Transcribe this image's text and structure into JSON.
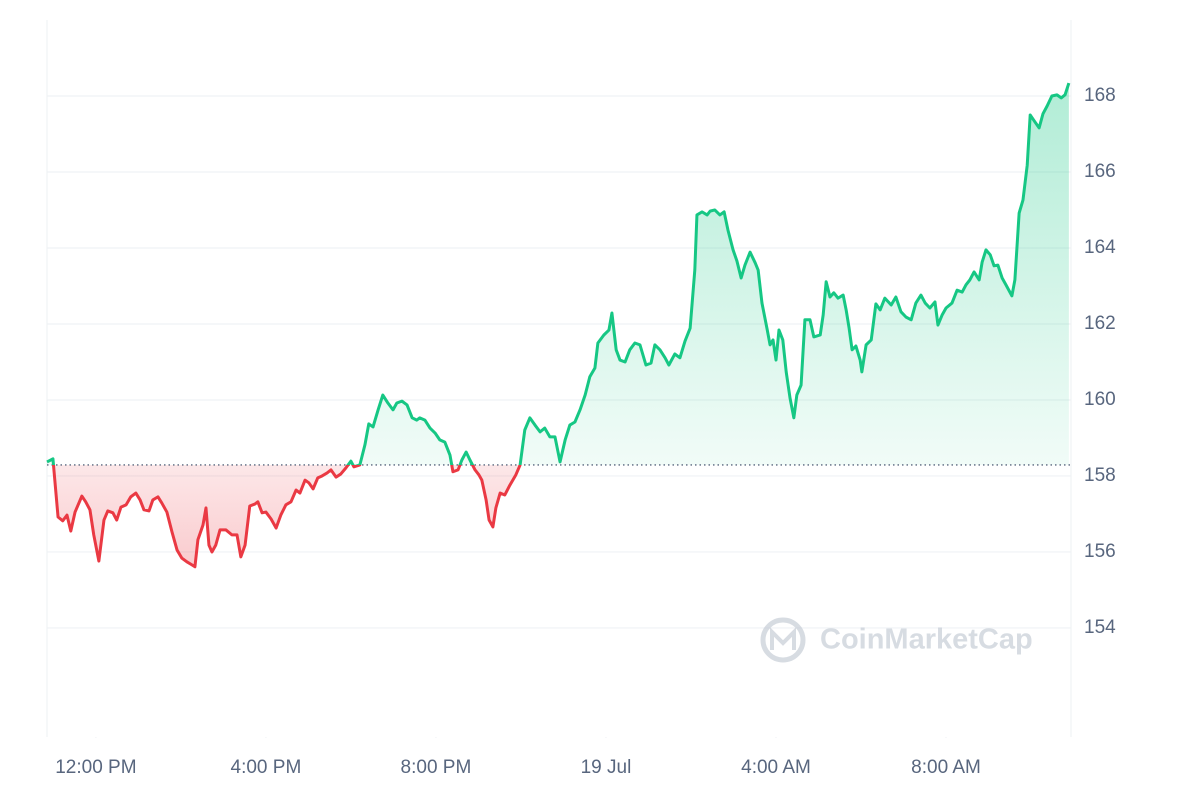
{
  "chart_data": {
    "type": "line",
    "watermark": "CoinMarketCap",
    "baseline": 158.29,
    "up_color": "#16c784",
    "down_color": "#ea3943",
    "grid": true,
    "xlim": [
      -1.15,
      22.94
    ],
    "ylim": [
      151.13,
      170
    ],
    "yticks": [
      154,
      156,
      158,
      160,
      162,
      164,
      166,
      168
    ],
    "xticks": [
      {
        "value": 0,
        "label": "12:00 PM"
      },
      {
        "value": 4,
        "label": "4:00 PM"
      },
      {
        "value": 8,
        "label": "8:00 PM"
      },
      {
        "value": 12,
        "label": "19 Jul"
      },
      {
        "value": 16,
        "label": "4:00 AM"
      },
      {
        "value": 20,
        "label": "8:00 AM"
      }
    ],
    "x": [
      -1.15,
      -1.01,
      -0.89,
      -0.78,
      -0.68,
      -0.59,
      -0.49,
      -0.33,
      -0.24,
      -0.14,
      -0.05,
      0.07,
      0.19,
      0.28,
      0.4,
      0.49,
      0.59,
      0.71,
      0.82,
      0.94,
      1.04,
      1.13,
      1.25,
      1.34,
      1.46,
      1.55,
      1.67,
      1.79,
      1.91,
      2.02,
      2.14,
      2.26,
      2.33,
      2.4,
      2.52,
      2.59,
      2.66,
      2.73,
      2.82,
      2.92,
      3.06,
      3.2,
      3.32,
      3.41,
      3.51,
      3.62,
      3.74,
      3.81,
      3.91,
      4.0,
      4.12,
      4.24,
      4.35,
      4.47,
      4.59,
      4.71,
      4.8,
      4.92,
      5.01,
      5.11,
      5.22,
      5.32,
      5.44,
      5.53,
      5.65,
      5.76,
      5.88,
      6.0,
      6.07,
      6.21,
      6.33,
      6.42,
      6.52,
      6.64,
      6.75,
      6.87,
      6.99,
      7.08,
      7.2,
      7.32,
      7.44,
      7.55,
      7.62,
      7.74,
      7.86,
      7.98,
      8.09,
      8.21,
      8.33,
      8.4,
      8.52,
      8.61,
      8.71,
      8.8,
      8.92,
      9.01,
      9.08,
      9.18,
      9.25,
      9.34,
      9.41,
      9.51,
      9.62,
      9.74,
      9.88,
      9.98,
      10.09,
      10.21,
      10.33,
      10.45,
      10.56,
      10.68,
      10.8,
      10.92,
      11.04,
      11.15,
      11.27,
      11.39,
      11.51,
      11.62,
      11.74,
      11.81,
      11.95,
      12.07,
      12.14,
      12.24,
      12.33,
      12.45,
      12.56,
      12.68,
      12.8,
      12.94,
      13.06,
      13.15,
      13.27,
      13.39,
      13.48,
      13.62,
      13.74,
      13.86,
      13.98,
      14.09,
      14.14,
      14.26,
      14.38,
      14.45,
      14.56,
      14.68,
      14.78,
      14.87,
      14.99,
      15.08,
      15.18,
      15.27,
      15.39,
      15.51,
      15.58,
      15.67,
      15.79,
      15.86,
      15.93,
      16.0,
      16.07,
      16.16,
      16.24,
      16.33,
      16.42,
      16.49,
      16.59,
      16.68,
      16.8,
      16.89,
      17.04,
      17.11,
      17.18,
      17.27,
      17.36,
      17.46,
      17.58,
      17.65,
      17.72,
      17.79,
      17.88,
      17.98,
      18.02,
      18.12,
      18.24,
      18.35,
      18.45,
      18.56,
      18.71,
      18.82,
      18.94,
      19.06,
      19.18,
      19.29,
      19.41,
      19.51,
      19.62,
      19.74,
      19.81,
      19.91,
      20.0,
      20.14,
      20.26,
      20.38,
      20.47,
      20.56,
      20.66,
      20.78,
      20.85,
      20.94,
      21.04,
      21.13,
      21.22,
      21.32,
      21.41,
      21.55,
      21.62,
      21.72,
      21.81,
      21.91,
      21.98,
      22.09,
      22.19,
      22.28,
      22.38,
      22.49,
      22.61,
      22.71,
      22.8,
      22.89
    ],
    "values": [
      158.37,
      158.45,
      156.92,
      156.82,
      156.97,
      156.55,
      157.05,
      157.47,
      157.32,
      157.11,
      156.45,
      155.76,
      156.84,
      157.08,
      157.03,
      156.84,
      157.18,
      157.24,
      157.45,
      157.55,
      157.37,
      157.11,
      157.08,
      157.37,
      157.45,
      157.29,
      157.05,
      156.53,
      156.05,
      155.84,
      155.74,
      155.66,
      155.61,
      156.32,
      156.71,
      157.16,
      156.18,
      156.0,
      156.18,
      156.58,
      156.58,
      156.45,
      156.45,
      155.87,
      156.18,
      157.21,
      157.26,
      157.32,
      157.03,
      157.05,
      156.87,
      156.63,
      156.97,
      157.24,
      157.32,
      157.63,
      157.55,
      157.89,
      157.82,
      157.66,
      157.95,
      158.0,
      158.08,
      158.16,
      157.97,
      158.05,
      158.21,
      158.39,
      158.24,
      158.29,
      158.82,
      159.37,
      159.29,
      159.74,
      160.13,
      159.92,
      159.74,
      159.92,
      159.97,
      159.87,
      159.53,
      159.47,
      159.53,
      159.47,
      159.26,
      159.13,
      158.95,
      158.89,
      158.55,
      158.11,
      158.16,
      158.42,
      158.63,
      158.42,
      158.16,
      158.03,
      157.89,
      157.37,
      156.84,
      156.66,
      157.16,
      157.55,
      157.5,
      157.76,
      158.03,
      158.29,
      159.21,
      159.53,
      159.34,
      159.16,
      159.26,
      159.03,
      159.03,
      158.37,
      158.95,
      159.34,
      159.42,
      159.74,
      160.13,
      160.61,
      160.84,
      161.5,
      161.71,
      161.84,
      162.29,
      161.32,
      161.05,
      161.0,
      161.32,
      161.5,
      161.45,
      160.92,
      160.97,
      161.45,
      161.32,
      161.11,
      160.92,
      161.21,
      161.11,
      161.55,
      161.89,
      163.42,
      164.87,
      164.95,
      164.87,
      164.97,
      165.0,
      164.87,
      164.95,
      164.47,
      163.95,
      163.66,
      163.21,
      163.55,
      163.89,
      163.61,
      163.42,
      162.55,
      161.87,
      161.45,
      161.58,
      161.05,
      161.84,
      161.58,
      160.74,
      160.05,
      159.53,
      160.13,
      160.39,
      162.11,
      162.11,
      161.66,
      161.71,
      162.24,
      163.11,
      162.71,
      162.82,
      162.68,
      162.76,
      162.37,
      161.89,
      161.32,
      161.42,
      161.05,
      160.74,
      161.45,
      161.58,
      162.53,
      162.37,
      162.68,
      162.5,
      162.71,
      162.32,
      162.18,
      162.11,
      162.55,
      162.76,
      162.55,
      162.42,
      162.58,
      161.97,
      162.24,
      162.42,
      162.55,
      162.89,
      162.84,
      163.03,
      163.16,
      163.37,
      163.16,
      163.63,
      163.95,
      163.82,
      163.53,
      163.55,
      163.21,
      163.03,
      162.74,
      163.16,
      164.92,
      165.26,
      166.18,
      167.5,
      167.32,
      167.16,
      167.53,
      167.74,
      168.0,
      168.03,
      167.95,
      168.03,
      168.34
    ]
  }
}
